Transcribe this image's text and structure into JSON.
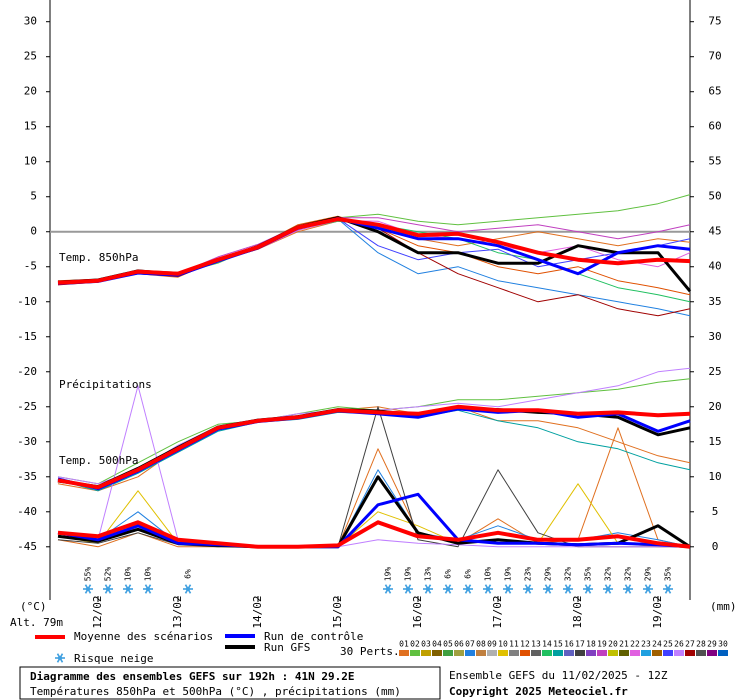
{
  "chart_data": {
    "type": "line",
    "title": "Diagramme des ensembles GEFS sur 192h : 41N 29.2E",
    "subtitle": "Températures 850hPa et 500hPa (°C) , précipitations (mm)",
    "run_label": "Ensemble GEFS du 11/02/2025 - 12Z",
    "copyright": "Copyright 2025 Meteociel.fr",
    "altitude": "Alt. 79m",
    "ylabel": "(°C)",
    "y2label": "(mm)",
    "annotations": [
      "Temp. 850hPa",
      "Précipitations",
      "Temp. 500hPa"
    ],
    "x": [
      11.5,
      12,
      12.5,
      13,
      13.5,
      14,
      14.5,
      15,
      15.5,
      16,
      16.5,
      17,
      17.5,
      18,
      18.5,
      19,
      19.4
    ],
    "xlim": [
      11.4,
      19.4
    ],
    "xticks": [
      {
        "value": 12,
        "label": "12/02"
      },
      {
        "value": 13,
        "label": "13/02"
      },
      {
        "value": 14,
        "label": "14/02"
      },
      {
        "value": 15,
        "label": "15/02"
      },
      {
        "value": 16,
        "label": "16/02"
      },
      {
        "value": 17,
        "label": "17/02"
      },
      {
        "value": 18,
        "label": "18/02"
      },
      {
        "value": 19,
        "label": "19/02"
      }
    ],
    "ylim": [
      -52.6,
      33.1
    ],
    "yticks": [
      30,
      25,
      20,
      15,
      10,
      5,
      0,
      -5,
      -10,
      -15,
      -20,
      -25,
      -30,
      -35,
      -40,
      -45
    ],
    "y2lim": [
      -7.6,
      78.1
    ],
    "y2ticks": [
      75,
      70,
      65,
      60,
      55,
      50,
      45,
      40,
      35,
      30,
      25,
      20,
      15,
      10,
      5,
      0
    ],
    "reference_line": 0,
    "series": [
      {
        "name": "Moyenne des scénarios",
        "color": "#ff0000",
        "t850": [
          -7.3,
          -7,
          -5.7,
          -6,
          -4,
          -2.2,
          0.6,
          1.8,
          1,
          -0.5,
          -0.3,
          -1.5,
          -3,
          -4,
          -4.5,
          -4,
          -4.2
        ],
        "t500": [
          -35.5,
          -36.5,
          -34,
          -31,
          -28,
          -27,
          -26.5,
          -25.5,
          -25.8,
          -26,
          -25,
          -25.5,
          -25.5,
          -26,
          -25.8,
          -26.2,
          -26
        ],
        "precip": [
          2,
          1.5,
          3.5,
          1,
          0.5,
          0,
          0,
          0.2,
          3.5,
          1.5,
          1,
          2,
          1,
          1,
          1.5,
          0.5,
          0
        ]
      },
      {
        "name": "Run de contrôle",
        "color": "#0000ff",
        "t850": [
          -7.4,
          -7.1,
          -5.9,
          -6.2,
          -4.2,
          -2.3,
          0.5,
          1.9,
          0.5,
          -1,
          -1,
          -2,
          -4,
          -6,
          -3,
          -2,
          -2.5
        ],
        "t500": [
          -35.3,
          -36.7,
          -34.2,
          -31.2,
          -28.2,
          -27.1,
          -26.6,
          -25.6,
          -26,
          -26.5,
          -25.3,
          -25.8,
          -25.5,
          -26.5,
          -26,
          -28.5,
          -27
        ],
        "precip": [
          2,
          1,
          3,
          0.5,
          0.3,
          0,
          0,
          0,
          6,
          7.5,
          1,
          0.5,
          0.5,
          0.3,
          0.5,
          0.3,
          0
        ]
      },
      {
        "name": "Run GFS",
        "color": "#000000",
        "t850": [
          -7.2,
          -6.9,
          -5.6,
          -6.1,
          -4.1,
          -2.1,
          0.7,
          2,
          0,
          -3,
          -3,
          -4.5,
          -4.5,
          -2,
          -3,
          -3,
          -8.5
        ],
        "t500": [
          -35.6,
          -36.4,
          -33.8,
          -30.8,
          -27.9,
          -26.9,
          -26.4,
          -25.4,
          -25.6,
          -26.2,
          -25.2,
          -25.4,
          -25.8,
          -26,
          -26.5,
          -29,
          -28
        ],
        "precip": [
          1.5,
          0.8,
          2.5,
          0.5,
          0.2,
          0,
          0,
          0,
          10,
          2,
          0.5,
          1,
          0.5,
          0.3,
          0.5,
          3,
          0
        ]
      }
    ],
    "members_label": "30 Perts.",
    "members": [
      {
        "name": "01",
        "color": "#e07020",
        "t850": [
          -7.5,
          -7,
          -6,
          -6.5,
          -4,
          -2.5,
          0,
          1.5,
          1,
          -1,
          -2,
          -1,
          0,
          -1,
          -2,
          -1,
          -1.5
        ],
        "t500": [
          -36,
          -37,
          -35,
          -31,
          -28,
          -27,
          -26.5,
          -25.5,
          -25,
          -26,
          -25,
          -27,
          -27,
          -28,
          -30,
          -32,
          -33
        ],
        "precip": [
          1,
          0,
          2,
          0,
          0,
          0,
          0,
          0,
          14,
          2,
          0.5,
          4,
          0.5,
          1,
          17,
          1,
          0
        ]
      },
      {
        "name": "02",
        "color": "#60c040",
        "t850": [
          -7.2,
          -6.8,
          -5.5,
          -6,
          -4.5,
          -2,
          0.5,
          2,
          2.5,
          1.5,
          1,
          1.5,
          2,
          2.5,
          3,
          4,
          5.3
        ],
        "t500": [
          -35,
          -36,
          -33,
          -30,
          -27.5,
          -27,
          -26,
          -25,
          -25.5,
          -25,
          -24,
          -24,
          -23.5,
          -23,
          -22.5,
          -21.5,
          -21
        ]
      },
      {
        "name": "03",
        "color": "#c0a000"
      },
      {
        "name": "04",
        "color": "#806000"
      },
      {
        "name": "05",
        "color": "#40a040"
      },
      {
        "name": "06",
        "color": "#a0a040"
      },
      {
        "name": "07",
        "color": "#2080e0",
        "t850": [
          -7.4,
          -7,
          -6,
          -6.2,
          -4,
          -2.4,
          0.5,
          1.8,
          -3,
          -6,
          -5,
          -7,
          -8,
          -9,
          -10,
          -11,
          -12
        ],
        "precip": [
          2,
          1,
          5,
          0.5,
          0,
          0,
          0,
          0,
          11,
          2,
          1,
          3,
          1,
          1,
          2,
          1,
          0
        ]
      },
      {
        "name": "08",
        "color": "#c08040"
      },
      {
        "name": "09",
        "color": "#b0b0b0"
      },
      {
        "name": "10",
        "color": "#e0c000",
        "precip": [
          1.5,
          0.5,
          8,
          0.5,
          0,
          0,
          0,
          0,
          5,
          3,
          0.5,
          1,
          0.5,
          9,
          0.5,
          0,
          0
        ]
      },
      {
        "name": "11",
        "color": "#808080"
      },
      {
        "name": "12",
        "color": "#e05000",
        "t850": [
          -7,
          -6.8,
          -5.5,
          -5.8,
          -3.8,
          -2,
          1,
          2.2,
          0.5,
          -2,
          -3,
          -5,
          -6,
          -5,
          -7,
          -8,
          -9
        ]
      },
      {
        "name": "13",
        "color": "#606060"
      },
      {
        "name": "14",
        "color": "#20c060",
        "t850": [
          -7.3,
          -7.1,
          -5.8,
          -6.1,
          -4.2,
          -2.3,
          0.3,
          1.5,
          1,
          0,
          -1,
          -3,
          -4,
          -6,
          -8,
          -9,
          -10
        ]
      },
      {
        "name": "15",
        "color": "#00a0a0",
        "t500": [
          -35.5,
          -37,
          -34.5,
          -31.5,
          -28.5,
          -27.2,
          -26.8,
          -25.8,
          -26,
          -26.5,
          -25.5,
          -27,
          -28,
          -30,
          -31,
          -33,
          -34
        ]
      },
      {
        "name": "16",
        "color": "#6060c0"
      },
      {
        "name": "17",
        "color": "#404040",
        "precip": [
          1,
          0.5,
          2,
          0.3,
          0,
          0,
          0,
          0,
          20,
          1,
          0,
          11,
          2,
          0,
          0,
          0,
          0
        ]
      },
      {
        "name": "18",
        "color": "#8040c0"
      },
      {
        "name": "19",
        "color": "#c040c0",
        "t850": [
          -7.5,
          -7,
          -5.6,
          -6,
          -3.6,
          -1.8,
          0.8,
          2,
          2,
          1,
          0,
          0.5,
          1,
          0,
          -1,
          0,
          1
        ]
      },
      {
        "name": "20",
        "color": "#c0c000"
      },
      {
        "name": "21",
        "color": "#606000"
      },
      {
        "name": "22",
        "color": "#e060e0",
        "t850": [
          -7.2,
          -6.9,
          -5.8,
          -6.3,
          -4,
          -2.5,
          0.2,
          1.6,
          1.5,
          -0.5,
          -1,
          -2,
          -3,
          -2,
          -4,
          -5,
          -3
        ]
      },
      {
        "name": "23",
        "color": "#20a0e0"
      },
      {
        "name": "24",
        "color": "#a06000"
      },
      {
        "name": "25",
        "color": "#4040ff",
        "t850": [
          -7.3,
          -7,
          -5.7,
          -6,
          -4,
          -2.2,
          0.6,
          1.9,
          -2,
          -4,
          -3,
          -2.5,
          -5,
          -4,
          -3,
          -2,
          -1
        ]
      },
      {
        "name": "26",
        "color": "#c080ff",
        "t500": [
          -35,
          -36,
          -34,
          -30.5,
          -27.8,
          -27,
          -26,
          -25.5,
          -25.5,
          -25,
          -24.5,
          -25,
          -24,
          -23,
          -22,
          -20,
          -19.5
        ],
        "precip": [
          2,
          1,
          23,
          1,
          0.5,
          0,
          0,
          0,
          1,
          0.5,
          0.3,
          0,
          0,
          0,
          0,
          0,
          0
        ]
      },
      {
        "name": "27",
        "color": "#a00000",
        "t850": [
          -7.6,
          -7.2,
          -6,
          -6.4,
          -4.2,
          -2.5,
          0.4,
          1.7,
          0.5,
          -3,
          -6,
          -8,
          -10,
          -9,
          -11,
          -12,
          -11
        ]
      },
      {
        "name": "28",
        "color": "#505050"
      },
      {
        "name": "29",
        "color": "#800080"
      },
      {
        "name": "30",
        "color": "#0060c0"
      }
    ],
    "snow_risk": {
      "name": "Risque neige",
      "color": "#40a0e0",
      "x": [
        11.875,
        12.125,
        12.375,
        12.625,
        13.125,
        15.625,
        15.875,
        16.125,
        16.375,
        16.625,
        16.875,
        17.125,
        17.375,
        17.625,
        17.875,
        18.125,
        18.375,
        18.625,
        18.875,
        19.125
      ],
      "values": [
        55,
        52,
        10,
        10,
        6,
        19,
        19,
        13,
        6,
        6,
        10,
        19,
        23,
        29,
        32,
        35,
        32,
        32,
        29,
        35
      ],
      "value_labels": [
        "55%",
        "52%",
        "10%",
        "10%",
        "6%",
        "19%",
        "19%",
        "13%",
        "6%",
        "6%",
        "10%",
        "19%",
        "23%",
        "29%",
        "32%",
        "35%",
        "32%",
        "32%",
        "29%",
        "35%"
      ]
    }
  }
}
